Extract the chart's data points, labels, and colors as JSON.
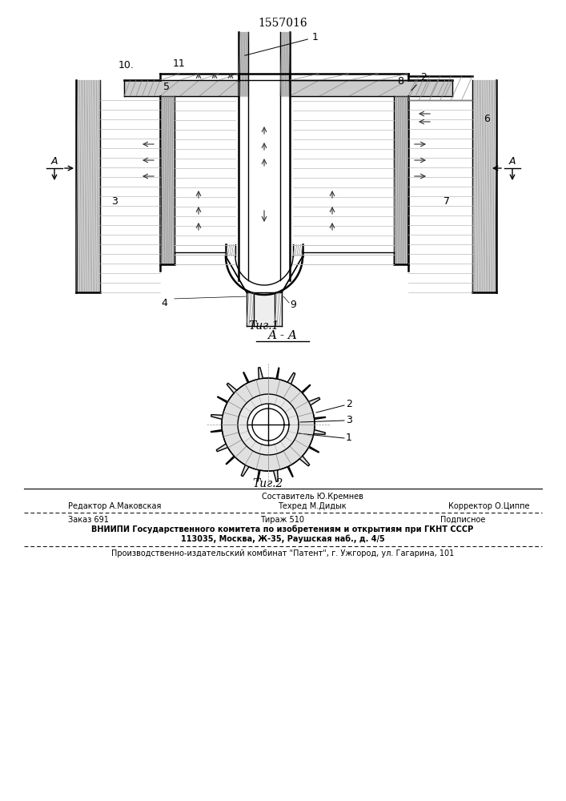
{
  "patent_number": "1557016",
  "fig1_caption": "Τиг.1",
  "fig2_caption": "Τиг.2",
  "section_label": "A - A",
  "footer_line0_center": "Составитель Ю.Кремнев",
  "footer_line1_left": "Редактор А.Маковская",
  "footer_line1_center": "Техред М.Дидык",
  "footer_line1_right": "Корректор О.Циппе",
  "footer_line2_left": "Заказ 691",
  "footer_line2_center": "Тираж 510",
  "footer_line2_right": "Подписное",
  "footer_line3": "ВНИИПИ Государственного комитета по изобретениям и открытиям при ГКНТ СССР",
  "footer_line4": "113035, Москва, Ж-35, Раушская наб., д. 4/5",
  "footer_line5": "Производственно-издательский комбинат \"Патент\", г. Ужгород, ул. Гагарина, 101",
  "bg_color": "#ffffff",
  "lc": "#000000"
}
